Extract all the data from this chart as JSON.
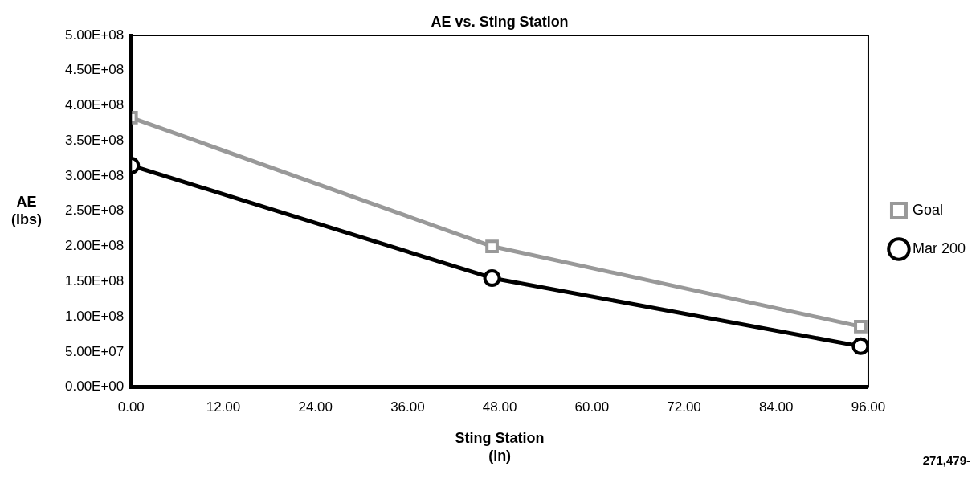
{
  "chart_data": {
    "type": "line",
    "title": "AE vs. Sting Station",
    "xlabel": "Sting Station\n(in)",
    "ylabel": "AE\n(lbs)",
    "annotations": [
      "271,479-"
    ],
    "series": [
      {
        "name": "Goal",
        "color": "#999999",
        "marker": "square",
        "x": [
          0,
          47,
          95
        ],
        "values": [
          383000000,
          200000000,
          86000000
        ]
      },
      {
        "name": "Mar 200",
        "color": "#000000",
        "marker": "circle",
        "x": [
          0,
          47,
          95
        ],
        "values": [
          315000000,
          155000000,
          58000000
        ]
      }
    ],
    "xlim": [
      0,
      96
    ],
    "xticks": [
      {
        "value": 0,
        "label": "0.00"
      },
      {
        "value": 12,
        "label": "12.00"
      },
      {
        "value": 24,
        "label": "24.00"
      },
      {
        "value": 36,
        "label": "36.00"
      },
      {
        "value": 48,
        "label": "48.00"
      },
      {
        "value": 60,
        "label": "60.00"
      },
      {
        "value": 72,
        "label": "72.00"
      },
      {
        "value": 84,
        "label": "84.00"
      },
      {
        "value": 96,
        "label": "96.00"
      }
    ],
    "ylim": [
      0,
      500000000
    ],
    "yticks": [
      {
        "value": 0,
        "label": "0.00E+00"
      },
      {
        "value": 50000000,
        "label": "5.00E+07"
      },
      {
        "value": 100000000,
        "label": "1.00E+08"
      },
      {
        "value": 150000000,
        "label": "1.50E+08"
      },
      {
        "value": 200000000,
        "label": "2.00E+08"
      },
      {
        "value": 250000000,
        "label": "2.50E+08"
      },
      {
        "value": 300000000,
        "label": "3.00E+08"
      },
      {
        "value": 350000000,
        "label": "3.50E+08"
      },
      {
        "value": 400000000,
        "label": "4.00E+08"
      },
      {
        "value": 450000000,
        "label": "4.50E+08"
      },
      {
        "value": 500000000,
        "label": "5.00E+08"
      }
    ],
    "grid": false,
    "legend": "right",
    "line_style": "solid"
  }
}
